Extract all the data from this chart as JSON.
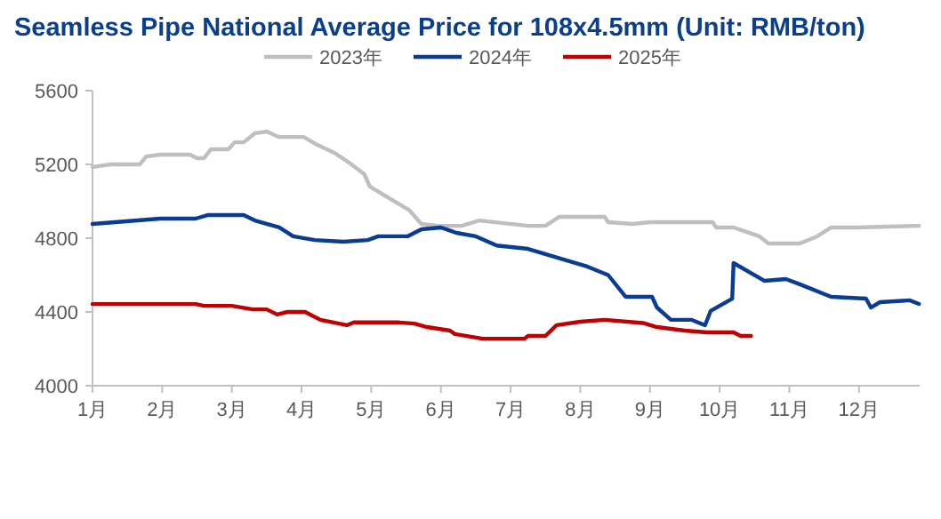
{
  "chart_data": {
    "type": "line",
    "title": "Seamless Pipe National Average Price for 108x4.5mm (Unit: RMB/ton)",
    "xlim": [
      1,
      12.87
    ],
    "ylim": [
      4000,
      5600
    ],
    "yticks": [
      4000,
      4400,
      4800,
      5200,
      5600
    ],
    "xticks": [
      {
        "value": 1,
        "label": "1月"
      },
      {
        "value": 2,
        "label": "2月"
      },
      {
        "value": 3,
        "label": "3月"
      },
      {
        "value": 4,
        "label": "4月"
      },
      {
        "value": 5,
        "label": "5月"
      },
      {
        "value": 6,
        "label": "6月"
      },
      {
        "value": 7,
        "label": "7月"
      },
      {
        "value": 8,
        "label": "8月"
      },
      {
        "value": 9,
        "label": "9月"
      },
      {
        "value": 10,
        "label": "10月"
      },
      {
        "value": 11,
        "label": "11月"
      },
      {
        "value": 12,
        "label": "12月"
      }
    ],
    "grid": false,
    "legend": "top",
    "marker": "none",
    "line_style": "solid",
    "series": [
      {
        "name": "2023年",
        "color": "#bfbfbf",
        "x": [
          1,
          1.26,
          1.68,
          1.77,
          1.97,
          2.4,
          2.5,
          2.6,
          2.7,
          2.95,
          3.04,
          3.17,
          3.33,
          3.5,
          3.67,
          4.03,
          4.2,
          4.47,
          4.7,
          4.9,
          4.98,
          5.28,
          5.54,
          5.72,
          5.96,
          6.3,
          6.55,
          7.25,
          7.5,
          7.7,
          8.35,
          8.4,
          8.75,
          9.0,
          9.9,
          9.95,
          10.2,
          10.57,
          10.7,
          11.15,
          11.4,
          11.6,
          11.95,
          12.86
        ],
        "values": [
          5186,
          5200,
          5200,
          5243,
          5253,
          5253,
          5234,
          5234,
          5282,
          5282,
          5320,
          5320,
          5369,
          5378,
          5349,
          5349,
          5311,
          5263,
          5205,
          5147,
          5080,
          5012,
          4954,
          4877,
          4867,
          4867,
          4896,
          4867,
          4867,
          4916,
          4916,
          4887,
          4877,
          4887,
          4887,
          4858,
          4858,
          4810,
          4771,
          4771,
          4810,
          4858,
          4858,
          4867
        ]
      },
      {
        "name": "2024年",
        "color": "#0a3d91",
        "x": [
          1,
          1.97,
          2.48,
          2.65,
          3.17,
          3.33,
          3.68,
          3.88,
          4.19,
          4.6,
          4.95,
          5.1,
          5.52,
          5.72,
          6.0,
          6.22,
          6.5,
          6.8,
          7.25,
          7.84,
          8.1,
          8.4,
          8.65,
          9.03,
          9.1,
          9.3,
          9.6,
          9.79,
          9.87,
          10.18,
          10.2,
          10.64,
          10.95,
          11.15,
          11.6,
          12.1,
          12.17,
          12.3,
          12.73,
          12.86
        ],
        "values": [
          4877,
          4906,
          4906,
          4925,
          4925,
          4896,
          4858,
          4810,
          4790,
          4781,
          4790,
          4810,
          4810,
          4848,
          4858,
          4829,
          4810,
          4760,
          4742,
          4675,
          4646,
          4600,
          4482,
          4482,
          4424,
          4357,
          4357,
          4328,
          4405,
          4472,
          4665,
          4569,
          4578,
          4550,
          4482,
          4472,
          4424,
          4453,
          4463,
          4443
        ]
      },
      {
        "name": "2025年",
        "color": "#c00000",
        "x": [
          1,
          2.48,
          2.6,
          3.0,
          3.3,
          3.5,
          3.65,
          3.8,
          4.05,
          4.27,
          4.65,
          4.75,
          5.4,
          5.62,
          5.8,
          6.13,
          6.2,
          6.6,
          7.2,
          7.25,
          7.5,
          7.66,
          8.0,
          8.35,
          8.9,
          9.1,
          9.5,
          9.82,
          10.2,
          10.3,
          10.45
        ],
        "values": [
          4443,
          4443,
          4433,
          4433,
          4414,
          4414,
          4386,
          4400,
          4400,
          4357,
          4328,
          4343,
          4343,
          4337,
          4318,
          4299,
          4280,
          4255,
          4255,
          4270,
          4270,
          4328,
          4347,
          4357,
          4340,
          4318,
          4299,
          4289,
          4289,
          4270,
          4270
        ]
      }
    ]
  }
}
